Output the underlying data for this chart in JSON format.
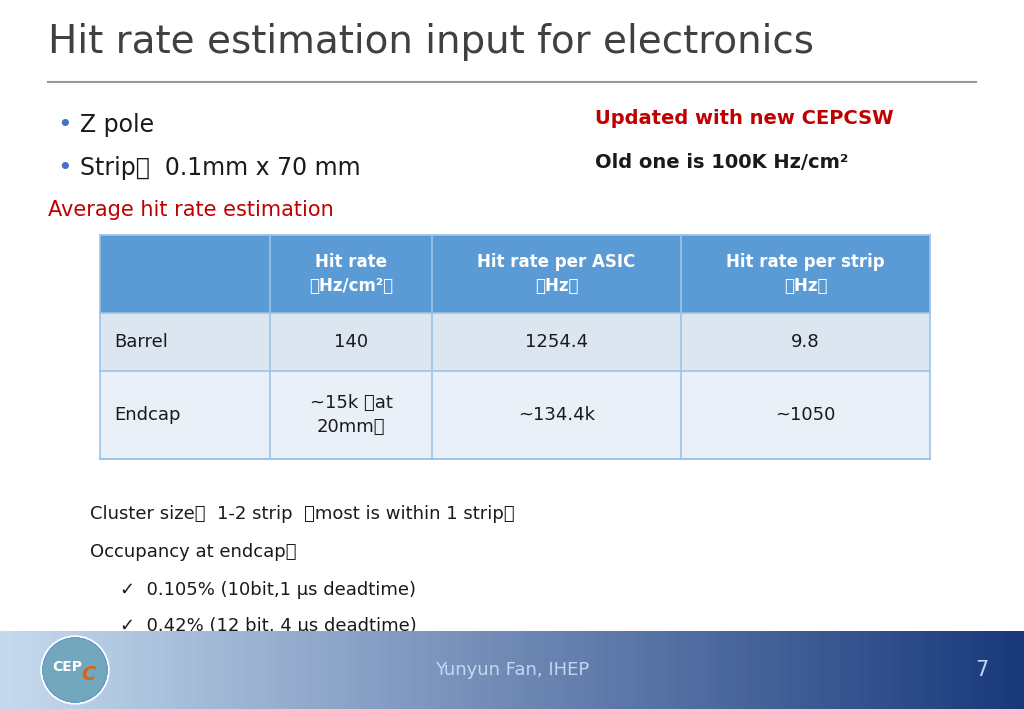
{
  "title": "Hit rate estimation input for electronics",
  "bullet1": "Z pole",
  "bullet2": "Strip：  0.1mm x 70 mm",
  "annotation_red": "Updated with new CEPCSW",
  "annotation_bold": "Old one is 100K Hz/cm²",
  "section_label": "Average hit rate estimation",
  "table_headers": [
    "",
    "Hit rate\n（Hz/cm²）",
    "Hit rate per ASIC\n（Hz）",
    "Hit rate per strip\n（Hz）"
  ],
  "table_rows": [
    [
      "Barrel",
      "140",
      "1254.4",
      "9.8"
    ],
    [
      "Endcap",
      "~15k （at\n20mm）",
      "~134.4k",
      "~1050"
    ]
  ],
  "cluster_text": "Cluster size：  1-2 strip  （most is within 1 strip）",
  "occupancy_text": "Occupancy at endcap：",
  "check1": "✓  0.105% (10bit,1 μs deadtime)",
  "check2": "✓  0.42% (12 bit, 4 μs deadtime)",
  "footer_text": "Yunyun Fan, IHEP",
  "footer_num": "7",
  "header_bg": "#5b9bd5",
  "row1_bg": "#dce6f1",
  "row2_bg": "#eaf0f8",
  "red_color": "#c00000",
  "blue_bullet": "#4472c4",
  "title_color": "#404040",
  "text_color": "#1a1a1a",
  "bg_color": "#ffffff"
}
